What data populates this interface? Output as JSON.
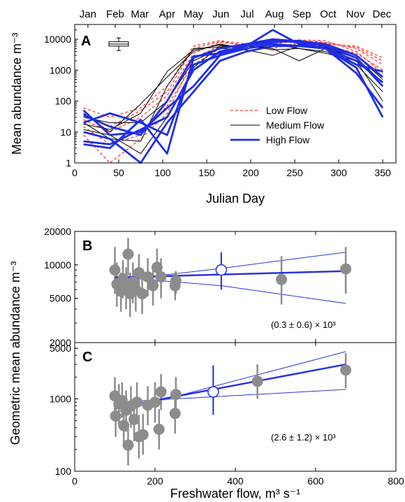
{
  "figure": {
    "shared_ylabel": "Geometric mean abundance m⁻³",
    "shared_xlabel": "Freshwater flow, m³ s⁻¹"
  },
  "chart_data": [
    {
      "panel": "A",
      "type": "line",
      "xlabel": "Julian Day",
      "ylabel": "Mean abundance m⁻³",
      "xlim": [
        0,
        365
      ],
      "ylim": [
        1,
        30000
      ],
      "yscale": "log",
      "xticks": [
        0,
        50,
        100,
        150,
        200,
        250,
        300,
        350
      ],
      "yticks": [
        1,
        10,
        100,
        1000,
        10000
      ],
      "yticklabels": [
        "1",
        "10",
        "100",
        "1000",
        "10000"
      ],
      "top_axis_months": [
        {
          "label": "Jan",
          "day": 15
        },
        {
          "label": "Feb",
          "day": 46
        },
        {
          "label": "Mar",
          "day": 74
        },
        {
          "label": "Apr",
          "day": 105
        },
        {
          "label": "May",
          "day": 135
        },
        {
          "label": "Jun",
          "day": 166
        },
        {
          "label": "Jul",
          "day": 196
        },
        {
          "label": "Aug",
          "day": 227
        },
        {
          "label": "Sep",
          "day": 258
        },
        {
          "label": "Oct",
          "day": 288
        },
        {
          "label": "Nov",
          "day": 319
        },
        {
          "label": "Dec",
          "day": 349
        }
      ],
      "legend": {
        "placement": "center-right",
        "entries": [
          "Low Flow",
          "Medium Flow",
          "High Flow"
        ]
      },
      "boxplot_inset": {
        "x": 50,
        "min": 4300,
        "q1": 6000,
        "median": 7000,
        "q3": 8300,
        "max": 11000
      },
      "colors": {
        "low": "#ff3b30",
        "medium": "#000000",
        "high": "#1f2ee6"
      },
      "series": [
        {
          "group": "Low Flow",
          "x": [
            10,
            40,
            75,
            105,
            135,
            165,
            195,
            225,
            255,
            285,
            320,
            350
          ],
          "y": [
            15,
            4,
            8,
            70,
            1500,
            5000,
            6000,
            7500,
            9000,
            8000,
            5000,
            1500
          ]
        },
        {
          "group": "Low Flow",
          "x": [
            10,
            40,
            75,
            105,
            135,
            165,
            195,
            225,
            255,
            285,
            320,
            350
          ],
          "y": [
            8,
            1,
            6,
            40,
            2500,
            6000,
            5500,
            8000,
            9500,
            9000,
            4000,
            800
          ]
        },
        {
          "group": "Low Flow",
          "x": [
            10,
            40,
            75,
            105,
            135,
            165,
            195,
            225,
            255,
            285,
            320,
            350
          ],
          "y": [
            60,
            30,
            60,
            300,
            6000,
            9000,
            7000,
            5000,
            8000,
            7000,
            6000,
            2500
          ]
        },
        {
          "group": "Low Flow",
          "x": [
            10,
            40,
            75,
            105,
            135,
            165,
            195,
            225,
            255,
            285,
            320,
            350
          ],
          "y": [
            25,
            10,
            30,
            150,
            3500,
            8000,
            6500,
            6000,
            7000,
            6500,
            3500,
            1000
          ]
        },
        {
          "group": "Low Flow",
          "x": [
            10,
            40,
            75,
            105,
            135,
            165,
            195,
            225,
            255,
            285,
            320,
            350
          ],
          "y": [
            40,
            15,
            50,
            200,
            5000,
            8500,
            6000,
            7000,
            9000,
            7500,
            5500,
            2000
          ]
        },
        {
          "group": "Medium Flow",
          "x": [
            10,
            40,
            75,
            105,
            135,
            165,
            195,
            225,
            255,
            285,
            320,
            350
          ],
          "y": [
            30,
            20,
            20,
            100,
            2000,
            5000,
            4500,
            3000,
            6000,
            6000,
            3000,
            500
          ]
        },
        {
          "group": "Medium Flow",
          "x": [
            10,
            40,
            75,
            105,
            135,
            165,
            195,
            225,
            255,
            285,
            320,
            350
          ],
          "y": [
            12,
            8,
            2,
            30,
            1200,
            6000,
            6000,
            5000,
            2000,
            5000,
            2500,
            300
          ]
        },
        {
          "group": "Medium Flow",
          "x": [
            10,
            40,
            75,
            105,
            135,
            165,
            195,
            225,
            255,
            285,
            320,
            350
          ],
          "y": [
            40,
            10,
            80,
            600,
            4000,
            7000,
            5000,
            7000,
            5000,
            3500,
            2000,
            100
          ]
        },
        {
          "group": "Medium Flow",
          "x": [
            10,
            40,
            75,
            105,
            135,
            165,
            195,
            225,
            255,
            285,
            320,
            350
          ],
          "y": [
            20,
            6,
            5,
            300,
            5000,
            5500,
            6500,
            4500,
            5000,
            4000,
            1500,
            200
          ]
        },
        {
          "group": "Medium Flow",
          "x": [
            10,
            40,
            75,
            105,
            135,
            165,
            195,
            225,
            255,
            285,
            320,
            350
          ],
          "y": [
            18,
            12,
            40,
            900,
            4500,
            6500,
            5000,
            6000,
            6500,
            5500,
            2500,
            400
          ]
        },
        {
          "group": "High Flow",
          "x": [
            10,
            40,
            75,
            105,
            135,
            165,
            195,
            225,
            255,
            285,
            320,
            350
          ],
          "y": [
            50,
            8,
            10,
            60,
            300,
            3000,
            5000,
            7000,
            6000,
            5000,
            1500,
            900
          ]
        },
        {
          "group": "High Flow",
          "x": [
            10,
            40,
            75,
            105,
            135,
            165,
            195,
            225,
            255,
            285,
            320,
            350
          ],
          "y": [
            5,
            4,
            12,
            30,
            1000,
            4000,
            6000,
            20000,
            7000,
            5000,
            2000,
            400
          ]
        },
        {
          "group": "High Flow",
          "x": [
            10,
            40,
            75,
            105,
            135,
            165,
            195,
            225,
            255,
            285,
            320,
            350
          ],
          "y": [
            4,
            3,
            25,
            2,
            2500,
            5000,
            7000,
            9000,
            8000,
            5000,
            800,
            60
          ]
        },
        {
          "group": "High Flow",
          "x": [
            10,
            40,
            75,
            105,
            135,
            165,
            195,
            225,
            255,
            285,
            320,
            350
          ],
          "y": [
            20,
            40,
            20,
            8,
            1500,
            3000,
            6000,
            8000,
            9000,
            6000,
            2500,
            300
          ]
        },
        {
          "group": "High Flow",
          "x": [
            10,
            40,
            75,
            105,
            135,
            165,
            195,
            225,
            255,
            285,
            320,
            350
          ],
          "y": [
            35,
            15,
            8,
            100,
            2800,
            3500,
            7000,
            10000,
            8500,
            7000,
            3000,
            600
          ]
        },
        {
          "group": "High Flow",
          "x": [
            10,
            40,
            75,
            105,
            135,
            165,
            195,
            225,
            255,
            285,
            320,
            350
          ],
          "y": [
            10,
            6,
            1,
            20,
            200,
            2000,
            4000,
            6000,
            6000,
            5000,
            1200,
            30
          ]
        }
      ]
    },
    {
      "panel": "B",
      "type": "scatter",
      "xlim": [
        0,
        800
      ],
      "ylim": [
        2000,
        20000
      ],
      "yscale": "log",
      "yticks": [
        2000,
        5000,
        10000,
        20000
      ],
      "yticklabels": [
        "2000",
        "5000",
        "10000",
        "20000"
      ],
      "annotation": "(0.3 ± 0.6) × 10³",
      "points": [
        {
          "x": 100,
          "y": 9000,
          "lo": 5500,
          "hi": 14500
        },
        {
          "x": 105,
          "y": 6700,
          "lo": 4200,
          "hi": 10500
        },
        {
          "x": 115,
          "y": 5800,
          "lo": 3800,
          "hi": 8500
        },
        {
          "x": 120,
          "y": 7500,
          "lo": 5000,
          "hi": 11000
        },
        {
          "x": 128,
          "y": 6300,
          "lo": 4000,
          "hi": 9500
        },
        {
          "x": 133,
          "y": 12500,
          "lo": 8000,
          "hi": 17500
        },
        {
          "x": 138,
          "y": 5500,
          "lo": 3400,
          "hi": 8500
        },
        {
          "x": 145,
          "y": 7000,
          "lo": 4500,
          "hi": 10500
        },
        {
          "x": 152,
          "y": 6000,
          "lo": 3800,
          "hi": 9000
        },
        {
          "x": 160,
          "y": 8500,
          "lo": 5500,
          "hi": 12500
        },
        {
          "x": 168,
          "y": 5500,
          "lo": 3600,
          "hi": 8200
        },
        {
          "x": 182,
          "y": 7800,
          "lo": 5200,
          "hi": 11500
        },
        {
          "x": 195,
          "y": 6500,
          "lo": 4300,
          "hi": 9500
        },
        {
          "x": 205,
          "y": 9500,
          "lo": 6200,
          "hi": 14000
        },
        {
          "x": 215,
          "y": 7800,
          "lo": 5000,
          "hi": 11500
        },
        {
          "x": 250,
          "y": 6500,
          "lo": 4800,
          "hi": 8500
        },
        {
          "x": 252,
          "y": 7200,
          "lo": 5500,
          "hi": 8800
        },
        {
          "x": 515,
          "y": 7400,
          "lo": 4400,
          "hi": 12000
        },
        {
          "x": 675,
          "y": 9200,
          "lo": 5500,
          "hi": 14500
        }
      ],
      "mean_point": {
        "x": 365,
        "y": 9000,
        "lo": 6000,
        "hi": 13000
      },
      "fit": {
        "x": [
          100,
          675
        ],
        "y": [
          7700,
          8800
        ]
      },
      "ci_upper": {
        "x": [
          100,
          365,
          675
        ],
        "y": [
          7200,
          9300,
          13000
        ]
      },
      "ci_lower": {
        "x": [
          100,
          365,
          675
        ],
        "y": [
          7800,
          6500,
          4500
        ]
      }
    },
    {
      "panel": "C",
      "type": "scatter",
      "xlabel": "Freshwater flow, m³ s⁻¹",
      "xlim": [
        0,
        800
      ],
      "ylim": [
        100,
        6000
      ],
      "yscale": "log",
      "xticks": [
        0,
        200,
        400,
        600,
        800
      ],
      "yticks": [
        100,
        1000,
        5000
      ],
      "yticklabels": [
        "100",
        "1000",
        "5000"
      ],
      "annotation": "(2.6 ± 1.2) × 10³",
      "points": [
        {
          "x": 100,
          "y": 1100,
          "lo": 600,
          "hi": 2000
        },
        {
          "x": 102,
          "y": 580,
          "lo": 300,
          "hi": 1100
        },
        {
          "x": 110,
          "y": 850,
          "lo": 450,
          "hi": 1600
        },
        {
          "x": 118,
          "y": 950,
          "lo": 550,
          "hi": 1700
        },
        {
          "x": 122,
          "y": 430,
          "lo": 220,
          "hi": 800
        },
        {
          "x": 128,
          "y": 700,
          "lo": 350,
          "hi": 1300
        },
        {
          "x": 133,
          "y": 230,
          "lo": 120,
          "hi": 450
        },
        {
          "x": 140,
          "y": 800,
          "lo": 400,
          "hi": 1500
        },
        {
          "x": 148,
          "y": 520,
          "lo": 260,
          "hi": 1000
        },
        {
          "x": 155,
          "y": 900,
          "lo": 470,
          "hi": 1700
        },
        {
          "x": 160,
          "y": 300,
          "lo": 150,
          "hi": 600
        },
        {
          "x": 170,
          "y": 320,
          "lo": 170,
          "hi": 620
        },
        {
          "x": 182,
          "y": 820,
          "lo": 430,
          "hi": 1500
        },
        {
          "x": 200,
          "y": 900,
          "lo": 470,
          "hi": 1700
        },
        {
          "x": 210,
          "y": 380,
          "lo": 200,
          "hi": 720
        },
        {
          "x": 215,
          "y": 1250,
          "lo": 700,
          "hi": 2200
        },
        {
          "x": 250,
          "y": 630,
          "lo": 330,
          "hi": 1200
        },
        {
          "x": 252,
          "y": 1150,
          "lo": 650,
          "hi": 2000
        },
        {
          "x": 455,
          "y": 1750,
          "lo": 1000,
          "hi": 3000
        },
        {
          "x": 675,
          "y": 2500,
          "lo": 1400,
          "hi": 4300
        }
      ],
      "mean_point": {
        "x": 345,
        "y": 1250,
        "lo": 600,
        "hi": 2900
      },
      "fit": {
        "x": [
          100,
          675
        ],
        "y": [
          750,
          3000
        ]
      },
      "ci_upper": {
        "x": [
          100,
          675
        ],
        "y": [
          650,
          4500
        ]
      },
      "ci_lower": {
        "x": [
          100,
          675
        ],
        "y": [
          900,
          1350
        ]
      }
    }
  ]
}
